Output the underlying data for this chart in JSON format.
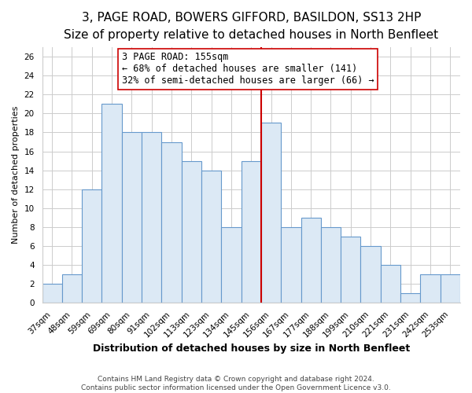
{
  "title": "3, PAGE ROAD, BOWERS GIFFORD, BASILDON, SS13 2HP",
  "subtitle": "Size of property relative to detached houses in North Benfleet",
  "xlabel": "Distribution of detached houses by size in North Benfleet",
  "ylabel": "Number of detached properties",
  "bar_labels": [
    "37sqm",
    "48sqm",
    "59sqm",
    "69sqm",
    "80sqm",
    "91sqm",
    "102sqm",
    "113sqm",
    "123sqm",
    "134sqm",
    "145sqm",
    "156sqm",
    "167sqm",
    "177sqm",
    "188sqm",
    "199sqm",
    "210sqm",
    "221sqm",
    "231sqm",
    "242sqm",
    "253sqm"
  ],
  "bar_values": [
    2,
    3,
    12,
    21,
    18,
    18,
    17,
    15,
    14,
    8,
    15,
    19,
    8,
    9,
    8,
    7,
    6,
    4,
    1,
    3,
    3
  ],
  "bar_color": "#dce9f5",
  "bar_edge_color": "#6699cc",
  "vline_color": "#cc0000",
  "vline_x_index": 11,
  "annotation_text": "3 PAGE ROAD: 155sqm\n← 68% of detached houses are smaller (141)\n32% of semi-detached houses are larger (66) →",
  "annotation_box_color": "#ffffff",
  "annotation_box_edgecolor": "#cc0000",
  "ylim": [
    0,
    27
  ],
  "yticks": [
    0,
    2,
    4,
    6,
    8,
    10,
    12,
    14,
    16,
    18,
    20,
    22,
    24,
    26
  ],
  "grid_color": "#cccccc",
  "footer_text": "Contains HM Land Registry data © Crown copyright and database right 2024.\nContains public sector information licensed under the Open Government Licence v3.0.",
  "background_color": "#ffffff",
  "title_fontsize": 11,
  "subtitle_fontsize": 9,
  "xlabel_fontsize": 9,
  "ylabel_fontsize": 8,
  "tick_fontsize": 7.5,
  "annotation_fontsize": 8.5,
  "footer_fontsize": 6.5
}
